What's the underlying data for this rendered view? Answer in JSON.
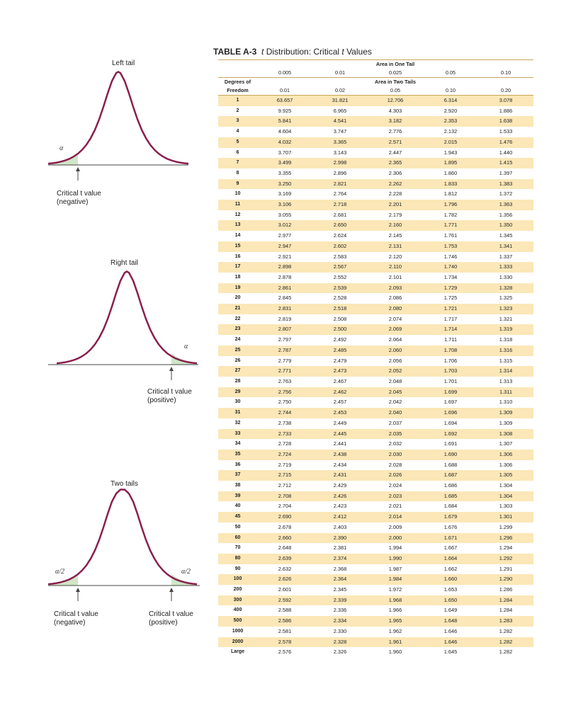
{
  "figures": [
    {
      "id": "left",
      "title": "Left tail",
      "alpha_labels": [
        "α"
      ],
      "captions": [
        "Critical t value\n(negative)"
      ]
    },
    {
      "id": "right",
      "title": "Right tail",
      "alpha_labels": [
        "α"
      ],
      "captions": [
        "Critical t value\n(positive)"
      ]
    },
    {
      "id": "two",
      "title": "Two tails",
      "alpha_labels": [
        "α/2",
        "α/2"
      ],
      "captions": [
        "Critical t value\n(negative)",
        "Critical t value\n(positive)"
      ]
    }
  ],
  "table": {
    "label": "TABLE A-3",
    "title_italic": "t",
    "title_text": " Distribution: Critical ",
    "title_italic2": "t",
    "title_tail": " Values",
    "one_tail_header": "Area in One Tail",
    "one_tail_values": [
      "0.005",
      "0.01",
      "0.025",
      "0.05",
      "0.10"
    ],
    "df_header_line1": "Degrees of",
    "df_header_line2": "Freedom",
    "two_tail_header": "Area in Two Tails",
    "two_tail_values": [
      "0.01",
      "0.02",
      "0.05",
      "0.10",
      "0.20"
    ],
    "rows": [
      [
        "1",
        "63.657",
        "31.821",
        "12.706",
        "6.314",
        "3.078"
      ],
      [
        "2",
        "9.925",
        "6.965",
        "4.303",
        "2.920",
        "1.886"
      ],
      [
        "3",
        "5.841",
        "4.541",
        "3.182",
        "2.353",
        "1.638"
      ],
      [
        "4",
        "4.604",
        "3.747",
        "2.776",
        "2.132",
        "1.533"
      ],
      [
        "5",
        "4.032",
        "3.365",
        "2.571",
        "2.015",
        "1.476"
      ],
      [
        "6",
        "3.707",
        "3.143",
        "2.447",
        "1.943",
        "1.440"
      ],
      [
        "7",
        "3.499",
        "2.998",
        "2.365",
        "1.895",
        "1.415"
      ],
      [
        "8",
        "3.355",
        "2.896",
        "2.306",
        "1.860",
        "1.397"
      ],
      [
        "9",
        "3.250",
        "2.821",
        "2.262",
        "1.833",
        "1.383"
      ],
      [
        "10",
        "3.169",
        "2.764",
        "2.228",
        "1.812",
        "1.372"
      ],
      [
        "11",
        "3.106",
        "2.718",
        "2.201",
        "1.796",
        "1.363"
      ],
      [
        "12",
        "3.055",
        "2.681",
        "2.179",
        "1.782",
        "1.356"
      ],
      [
        "13",
        "3.012",
        "2.650",
        "2.160",
        "1.771",
        "1.350"
      ],
      [
        "14",
        "2.977",
        "2.624",
        "2.145",
        "1.761",
        "1.345"
      ],
      [
        "15",
        "2.947",
        "2.602",
        "2.131",
        "1.753",
        "1.341"
      ],
      [
        "16",
        "2.921",
        "2.583",
        "2.120",
        "1.746",
        "1.337"
      ],
      [
        "17",
        "2.898",
        "2.567",
        "2.110",
        "1.740",
        "1.333"
      ],
      [
        "18",
        "2.878",
        "2.552",
        "2.101",
        "1.734",
        "1.330"
      ],
      [
        "19",
        "2.861",
        "2.539",
        "2.093",
        "1.729",
        "1.328"
      ],
      [
        "20",
        "2.845",
        "2.528",
        "2.086",
        "1.725",
        "1.325"
      ],
      [
        "21",
        "2.831",
        "2.518",
        "2.080",
        "1.721",
        "1.323"
      ],
      [
        "22",
        "2.819",
        "2.508",
        "2.074",
        "1.717",
        "1.321"
      ],
      [
        "23",
        "2.807",
        "2.500",
        "2.069",
        "1.714",
        "1.319"
      ],
      [
        "24",
        "2.797",
        "2.492",
        "2.064",
        "1.711",
        "1.318"
      ],
      [
        "25",
        "2.787",
        "2.485",
        "2.060",
        "1.708",
        "1.316"
      ],
      [
        "26",
        "2.779",
        "2.479",
        "2.056",
        "1.706",
        "1.315"
      ],
      [
        "27",
        "2.771",
        "2.473",
        "2.052",
        "1.703",
        "1.314"
      ],
      [
        "28",
        "2.763",
        "2.467",
        "2.048",
        "1.701",
        "1.313"
      ],
      [
        "29",
        "2.756",
        "2.462",
        "2.045",
        "1.699",
        "1.311"
      ],
      [
        "30",
        "2.750",
        "2.457",
        "2.042",
        "1.697",
        "1.310"
      ],
      [
        "31",
        "2.744",
        "2.453",
        "2.040",
        "1.696",
        "1.309"
      ],
      [
        "32",
        "2.738",
        "2.449",
        "2.037",
        "1.694",
        "1.309"
      ],
      [
        "33",
        "2.733",
        "2.445",
        "2.035",
        "1.692",
        "1.308"
      ],
      [
        "34",
        "2.728",
        "2.441",
        "2.032",
        "1.691",
        "1.307"
      ],
      [
        "35",
        "2.724",
        "2.438",
        "2.030",
        "1.690",
        "1.306"
      ],
      [
        "36",
        "2.719",
        "2.434",
        "2.028",
        "1.688",
        "1.306"
      ],
      [
        "37",
        "2.715",
        "2.431",
        "2.026",
        "1.687",
        "1.305"
      ],
      [
        "38",
        "2.712",
        "2.429",
        "2.024",
        "1.686",
        "1.304"
      ],
      [
        "39",
        "2.708",
        "2.426",
        "2.023",
        "1.685",
        "1.304"
      ],
      [
        "40",
        "2.704",
        "2.423",
        "2.021",
        "1.684",
        "1.303"
      ],
      [
        "45",
        "2.690",
        "2.412",
        "2.014",
        "1.679",
        "1.301"
      ],
      [
        "50",
        "2.678",
        "2.403",
        "2.009",
        "1.676",
        "1.299"
      ],
      [
        "60",
        "2.660",
        "2.390",
        "2.000",
        "1.671",
        "1.296"
      ],
      [
        "70",
        "2.648",
        "2.381",
        "1.994",
        "1.667",
        "1.294"
      ],
      [
        "80",
        "2.639",
        "2.374",
        "1.990",
        "1.664",
        "1.292"
      ],
      [
        "90",
        "2.632",
        "2.368",
        "1.987",
        "1.662",
        "1.291"
      ],
      [
        "100",
        "2.626",
        "2.364",
        "1.984",
        "1.660",
        "1.290"
      ],
      [
        "200",
        "2.601",
        "2.345",
        "1.972",
        "1.653",
        "1.286"
      ],
      [
        "300",
        "2.592",
        "2.339",
        "1.968",
        "1.650",
        "1.284"
      ],
      [
        "400",
        "2.588",
        "2.336",
        "1.966",
        "1.649",
        "1.284"
      ],
      [
        "500",
        "2.586",
        "2.334",
        "1.965",
        "1.648",
        "1.283"
      ],
      [
        "1000",
        "2.581",
        "2.330",
        "1.962",
        "1.646",
        "1.282"
      ],
      [
        "2000",
        "2.578",
        "2.328",
        "1.961",
        "1.646",
        "1.282"
      ],
      [
        "Large",
        "2.576",
        "2.326",
        "1.960",
        "1.645",
        "1.282"
      ]
    ]
  },
  "colors": {
    "curve": "#8a1f4e",
    "tail_fill": "#cfe6c8",
    "band": "#fbe7b7",
    "rule": "#c8a55b"
  }
}
